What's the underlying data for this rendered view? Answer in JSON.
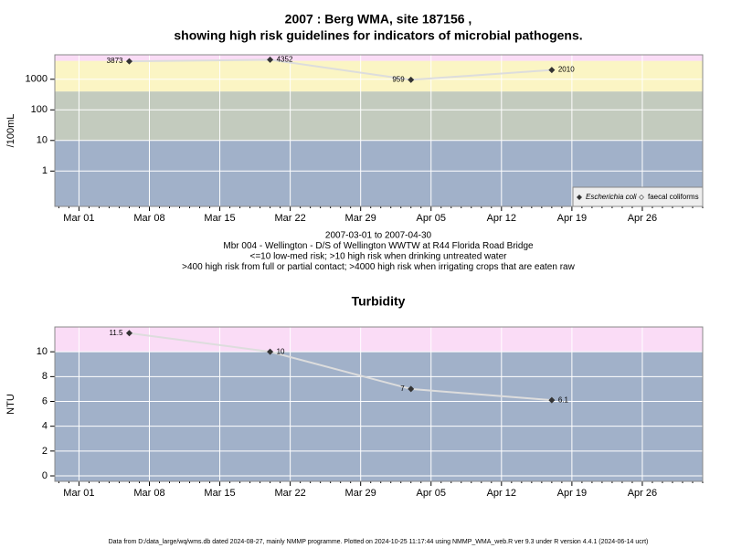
{
  "chart_data": [
    {
      "type": "line",
      "title": [
        "2007 : Berg WMA, site 187156 ,",
        "showing high risk guidelines for indicators of microbial pathogens."
      ],
      "ylabel": "/100mL",
      "log": true,
      "x": [
        5,
        19,
        33,
        47
      ],
      "xlim": [
        -2.4,
        62
      ],
      "xticks": [
        {
          "value": 0,
          "label": "Mar 01"
        },
        {
          "value": 7,
          "label": "Mar 08"
        },
        {
          "value": 14,
          "label": "Mar 15"
        },
        {
          "value": 21,
          "label": "Mar 22"
        },
        {
          "value": 28,
          "label": "Mar 29"
        },
        {
          "value": 35,
          "label": "Apr 05"
        },
        {
          "value": 42,
          "label": "Apr 12"
        },
        {
          "value": 49,
          "label": "Apr 19"
        },
        {
          "value": 56,
          "label": "Apr 26"
        }
      ],
      "ylim": [
        0.07,
        6300
      ],
      "yticks": [
        1,
        10,
        100,
        1000
      ],
      "bands": [
        {
          "from": 0.07,
          "to": 10,
          "color": "#a1b1c9"
        },
        {
          "from": 10,
          "to": 400,
          "color": "#c3cbbe"
        },
        {
          "from": 400,
          "to": 4000,
          "color": "#fbf5c4"
        },
        {
          "from": 4000,
          "to": 6300,
          "color": "#fadcf6"
        }
      ],
      "series": [
        {
          "name": "Escherichia coli",
          "color": "#333333",
          "line_color": "#dddddd",
          "values": [
            3873,
            4352,
            959,
            2010
          ]
        }
      ],
      "legend_extra": "faecal coliforms",
      "legend": "lower right",
      "caption": [
        "2007-03-01 to 2007-04-30",
        "Mbr 004 - Wellington - D/S of Wellington WWTW at R44 Florida Road Bridge",
        "<=10 low-med risk; >10 high risk when drinking untreated water",
        ">400 high risk from full or partial contact; >4000 high risk when irrigating crops that are eaten raw"
      ]
    },
    {
      "type": "line",
      "title": [
        "Turbidity"
      ],
      "ylabel": "NTU",
      "log": false,
      "x": [
        5,
        19,
        33,
        47
      ],
      "xlim": [
        -2.4,
        62
      ],
      "xticks": [
        {
          "value": 0,
          "label": "Mar 01"
        },
        {
          "value": 7,
          "label": "Mar 08"
        },
        {
          "value": 14,
          "label": "Mar 15"
        },
        {
          "value": 21,
          "label": "Mar 22"
        },
        {
          "value": 28,
          "label": "Mar 29"
        },
        {
          "value": 35,
          "label": "Apr 05"
        },
        {
          "value": 42,
          "label": "Apr 12"
        },
        {
          "value": 49,
          "label": "Apr 19"
        },
        {
          "value": 56,
          "label": "Apr 26"
        }
      ],
      "ylim": [
        -0.44,
        12
      ],
      "yticks": [
        0,
        2,
        4,
        6,
        8,
        10
      ],
      "bands": [
        {
          "from": -0.44,
          "to": 10,
          "color": "#a1b1c9"
        },
        {
          "from": 10,
          "to": 12,
          "color": "#fadcf6"
        }
      ],
      "series": [
        {
          "name": "Turbidity",
          "color": "#333333",
          "line_color": "#dddddd",
          "values": [
            11.5,
            10,
            7,
            6.1
          ]
        }
      ]
    }
  ],
  "footer": "Data from D:/data_large/wq/wms.db dated 2024-08-27, mainly NMMP programme. Plotted on 2024-10-25 11:17:44 using NMMP_WMA_web.R ver 9.3 under R version 4.4.1 (2024-06-14 ucrt)"
}
